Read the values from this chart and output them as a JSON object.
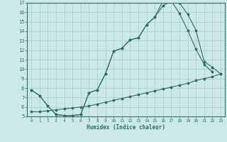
{
  "xlabel": "Humidex (Indice chaleur)",
  "bg_color": "#cce8e8",
  "grid_color": "#aacccc",
  "line_color": "#2d7068",
  "xlim": [
    -0.5,
    23.5
  ],
  "ylim": [
    5,
    17
  ],
  "xticks": [
    0,
    1,
    2,
    3,
    4,
    5,
    6,
    7,
    8,
    9,
    10,
    11,
    12,
    13,
    14,
    15,
    16,
    17,
    18,
    19,
    20,
    21,
    22,
    23
  ],
  "yticks": [
    5,
    6,
    7,
    8,
    9,
    10,
    11,
    12,
    13,
    14,
    15,
    16,
    17
  ],
  "line1_x": [
    0,
    1,
    2,
    3,
    4,
    5,
    6,
    7,
    8,
    9,
    10,
    11,
    12,
    13,
    14,
    15,
    16,
    17,
    18,
    19,
    20,
    21,
    22,
    23
  ],
  "line1_y": [
    7.8,
    7.2,
    6.1,
    5.2,
    5.1,
    5.1,
    5.2,
    7.5,
    7.8,
    9.5,
    11.9,
    12.2,
    13.1,
    13.3,
    14.7,
    15.5,
    17.2,
    17.2,
    17.0,
    15.8,
    14.1,
    10.8,
    10.2,
    9.5
  ],
  "line2_x": [
    0,
    1,
    2,
    3,
    4,
    5,
    6,
    7,
    8,
    9,
    10,
    11,
    12,
    13,
    14,
    15,
    16,
    17,
    18,
    19,
    20,
    21,
    22
  ],
  "line2_y": [
    7.8,
    7.2,
    6.1,
    5.2,
    5.1,
    5.1,
    5.2,
    7.5,
    7.8,
    9.5,
    11.9,
    12.2,
    13.1,
    13.3,
    14.7,
    15.5,
    16.7,
    17.2,
    15.9,
    14.1,
    12.1,
    10.5,
    9.7
  ],
  "line3_x": [
    0,
    1,
    2,
    3,
    4,
    5,
    6,
    7,
    8,
    9,
    10,
    11,
    12,
    13,
    14,
    15,
    16,
    17,
    18,
    19,
    20,
    21,
    22,
    23
  ],
  "line3_y": [
    5.5,
    5.5,
    5.6,
    5.7,
    5.8,
    5.9,
    6.0,
    6.1,
    6.3,
    6.5,
    6.7,
    6.9,
    7.1,
    7.3,
    7.5,
    7.7,
    7.9,
    8.1,
    8.3,
    8.5,
    8.8,
    9.0,
    9.2,
    9.5
  ]
}
